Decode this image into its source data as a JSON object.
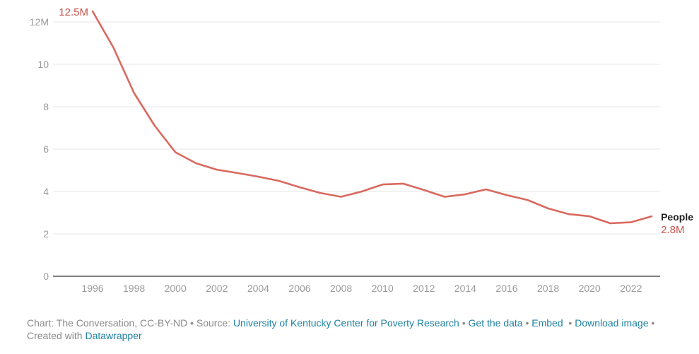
{
  "chart_data": {
    "type": "line",
    "title": "",
    "xlabel": "",
    "ylabel": "",
    "x": [
      1996,
      1997,
      1998,
      1999,
      2000,
      2001,
      2002,
      2003,
      2004,
      2005,
      2006,
      2007,
      2008,
      2009,
      2010,
      2011,
      2012,
      2013,
      2014,
      2015,
      2016,
      2017,
      2018,
      2019,
      2020,
      2021,
      2022,
      2023
    ],
    "series": [
      {
        "name": "People",
        "color": "#d9695f",
        "values": [
          12.5,
          10.8,
          8.65,
          7.1,
          5.85,
          5.33,
          5.03,
          4.87,
          4.7,
          4.5,
          4.2,
          3.93,
          3.75,
          4.0,
          4.33,
          4.37,
          4.07,
          3.75,
          3.87,
          4.1,
          3.83,
          3.6,
          3.2,
          2.93,
          2.83,
          2.5,
          2.55,
          2.83
        ]
      }
    ],
    "ylim": [
      0,
      12.5
    ],
    "xlim": [
      1994.5,
      2023.5
    ],
    "y_ticks": [
      {
        "value": 0,
        "label": "0"
      },
      {
        "value": 2,
        "label": "2"
      },
      {
        "value": 4,
        "label": "4"
      },
      {
        "value": 6,
        "label": "6"
      },
      {
        "value": 8,
        "label": "8"
      },
      {
        "value": 10,
        "label": "10"
      },
      {
        "value": 12,
        "label": "12M"
      }
    ],
    "x_ticks": [
      {
        "value": 1996,
        "label": "1996"
      },
      {
        "value": 1998,
        "label": "1998"
      },
      {
        "value": 2000,
        "label": "2000"
      },
      {
        "value": 2002,
        "label": "2002"
      },
      {
        "value": 2004,
        "label": "2004"
      },
      {
        "value": 2006,
        "label": "2006"
      },
      {
        "value": 2008,
        "label": "2008"
      },
      {
        "value": 2010,
        "label": "2010"
      },
      {
        "value": 2012,
        "label": "2012"
      },
      {
        "value": 2014,
        "label": "2014"
      },
      {
        "value": 2016,
        "label": "2016"
      },
      {
        "value": 2018,
        "label": "2018"
      },
      {
        "value": 2020,
        "label": "2020"
      },
      {
        "value": 2022,
        "label": "2022"
      }
    ],
    "grid": true,
    "annotations": {
      "start_value_label": "12.5M",
      "end_series_label": "People",
      "end_value_label": "2.8M"
    },
    "legend": "none (direct label at line end)"
  },
  "footer": {
    "chart_credit": "Chart: The Conversation, CC-BY-ND",
    "source_prefix": "Source:",
    "source_link": "University of Kentucky Center for Poverty Research",
    "get_data_link": "Get the data",
    "embed_link": "Embed",
    "download_link": "Download image",
    "created_with": "Created with",
    "datawrapper_link": "Datawrapper",
    "separator": "•"
  }
}
